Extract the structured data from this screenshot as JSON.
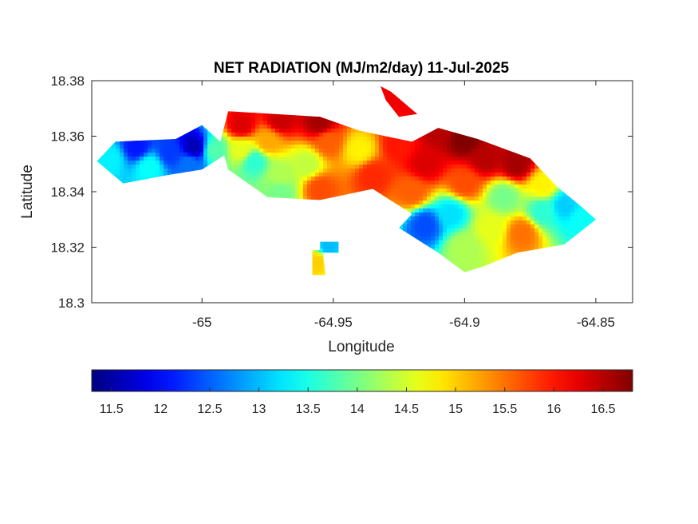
{
  "chart_data": {
    "type": "heatmap",
    "title": "NET RADIATION (MJ/m2/day) 11-Jul-2025",
    "xlabel": "Longitude",
    "ylabel": "Latitude",
    "xlim": [
      -65.042,
      -64.836
    ],
    "ylim": [
      18.3,
      18.38
    ],
    "xticks": [
      -65,
      -64.95,
      -64.9,
      -64.85
    ],
    "xtick_labels": [
      "-65",
      "-64.95",
      "-64.9",
      "-64.85"
    ],
    "yticks": [
      18.38,
      18.36,
      18.34,
      18.32,
      18.3
    ],
    "ytick_labels": [
      "18.38",
      "18.36",
      "18.34",
      "18.32",
      "18.3"
    ],
    "colormap": "jet",
    "clim": [
      11.3,
      16.8
    ],
    "colorbar_ticks": [
      11.5,
      12,
      12.5,
      13,
      13.5,
      14,
      14.5,
      15,
      15.5,
      16,
      16.5
    ],
    "colorbar_labels": [
      "11.5",
      "12",
      "12.5",
      "13",
      "13.5",
      "14",
      "14.5",
      "15",
      "15.5",
      "16",
      "16.5"
    ],
    "colorbar_location": "south",
    "grid": false,
    "regions": [
      {
        "name": "western-peninsula",
        "polygon": [
          [
            -65.04,
            18.351
          ],
          [
            -65.033,
            18.358
          ],
          [
            -65.01,
            18.359
          ],
          [
            -65.0,
            18.364
          ],
          [
            -64.993,
            18.358
          ],
          [
            -64.99,
            18.354
          ],
          [
            -65.0,
            18.348
          ],
          [
            -65.013,
            18.346
          ],
          [
            -65.03,
            18.343
          ]
        ]
      },
      {
        "name": "main-island",
        "polygon": [
          [
            -64.993,
            18.358
          ],
          [
            -64.99,
            18.369
          ],
          [
            -64.955,
            18.367
          ],
          [
            -64.94,
            18.362
          ],
          [
            -64.92,
            18.358
          ],
          [
            -64.91,
            18.363
          ],
          [
            -64.895,
            18.359
          ],
          [
            -64.875,
            18.352
          ],
          [
            -64.865,
            18.342
          ],
          [
            -64.856,
            18.335
          ],
          [
            -64.85,
            18.33
          ],
          [
            -64.862,
            18.321
          ],
          [
            -64.88,
            18.318
          ],
          [
            -64.893,
            18.313
          ],
          [
            -64.9,
            18.311
          ],
          [
            -64.91,
            18.318
          ],
          [
            -64.925,
            18.327
          ],
          [
            -64.92,
            18.332
          ],
          [
            -64.935,
            18.341
          ],
          [
            -64.955,
            18.337
          ],
          [
            -64.975,
            18.338
          ],
          [
            -64.99,
            18.348
          ]
        ]
      },
      {
        "name": "northeast-strip",
        "polygon": [
          [
            -64.932,
            18.378
          ],
          [
            -64.928,
            18.376
          ],
          [
            -64.918,
            18.368
          ],
          [
            -64.925,
            18.367
          ],
          [
            -64.93,
            18.373
          ]
        ]
      },
      {
        "name": "southern-cay",
        "polygon": [
          [
            -64.955,
            18.322
          ],
          [
            -64.948,
            18.322
          ],
          [
            -64.948,
            18.318
          ],
          [
            -64.955,
            18.318
          ]
        ]
      },
      {
        "name": "southern-tip",
        "polygon": [
          [
            -64.958,
            18.319
          ],
          [
            -64.954,
            18.319
          ],
          [
            -64.953,
            18.31
          ],
          [
            -64.958,
            18.31
          ]
        ]
      }
    ],
    "values": [
      {
        "lon": -65.035,
        "lat": 18.352,
        "value": 13.3
      },
      {
        "lon": -65.025,
        "lat": 18.356,
        "value": 12.1
      },
      {
        "lon": -65.02,
        "lat": 18.349,
        "value": 13.4
      },
      {
        "lon": -65.012,
        "lat": 18.354,
        "value": 12.3
      },
      {
        "lon": -65.003,
        "lat": 18.356,
        "value": 11.6
      },
      {
        "lon": -65.005,
        "lat": 18.35,
        "value": 12.6
      },
      {
        "lon": -64.995,
        "lat": 18.355,
        "value": 13.8
      },
      {
        "lon": -64.985,
        "lat": 18.364,
        "value": 16.3
      },
      {
        "lon": -64.97,
        "lat": 18.366,
        "value": 16.4
      },
      {
        "lon": -64.955,
        "lat": 18.365,
        "value": 16.6
      },
      {
        "lon": -64.985,
        "lat": 18.355,
        "value": 14.6
      },
      {
        "lon": -64.98,
        "lat": 18.351,
        "value": 13.6
      },
      {
        "lon": -64.975,
        "lat": 18.358,
        "value": 15.2
      },
      {
        "lon": -64.97,
        "lat": 18.346,
        "value": 14.3
      },
      {
        "lon": -64.96,
        "lat": 18.35,
        "value": 14.4
      },
      {
        "lon": -64.952,
        "lat": 18.358,
        "value": 15.6
      },
      {
        "lon": -64.955,
        "lat": 18.341,
        "value": 15.7
      },
      {
        "lon": -64.97,
        "lat": 18.34,
        "value": 14.0
      },
      {
        "lon": -64.94,
        "lat": 18.355,
        "value": 14.8
      },
      {
        "lon": -64.935,
        "lat": 18.346,
        "value": 15.9
      },
      {
        "lon": -64.925,
        "lat": 18.357,
        "value": 16.0
      },
      {
        "lon": -64.915,
        "lat": 18.35,
        "value": 16.3
      },
      {
        "lon": -64.92,
        "lat": 18.34,
        "value": 15.6
      },
      {
        "lon": -64.91,
        "lat": 18.362,
        "value": 16.5
      },
      {
        "lon": -64.9,
        "lat": 18.359,
        "value": 16.8
      },
      {
        "lon": -64.892,
        "lat": 18.352,
        "value": 16.5
      },
      {
        "lon": -64.88,
        "lat": 18.35,
        "value": 16.6
      },
      {
        "lon": -64.9,
        "lat": 18.343,
        "value": 15.7
      },
      {
        "lon": -64.915,
        "lat": 18.328,
        "value": 12.4
      },
      {
        "lon": -64.905,
        "lat": 18.332,
        "value": 13.2
      },
      {
        "lon": -64.9,
        "lat": 18.32,
        "value": 14.3
      },
      {
        "lon": -64.89,
        "lat": 18.327,
        "value": 14.6
      },
      {
        "lon": -64.885,
        "lat": 18.338,
        "value": 14.0
      },
      {
        "lon": -64.878,
        "lat": 18.325,
        "value": 15.5
      },
      {
        "lon": -64.87,
        "lat": 18.333,
        "value": 13.6
      },
      {
        "lon": -64.862,
        "lat": 18.335,
        "value": 13.1
      },
      {
        "lon": -64.87,
        "lat": 18.342,
        "value": 14.8
      },
      {
        "lon": -64.855,
        "lat": 18.33,
        "value": 13.4
      },
      {
        "lon": -64.93,
        "lat": 18.373,
        "value": 16.2
      },
      {
        "lon": -64.952,
        "lat": 18.32,
        "value": 13.0
      },
      {
        "lon": -64.956,
        "lat": 18.315,
        "value": 15.0
      }
    ]
  }
}
